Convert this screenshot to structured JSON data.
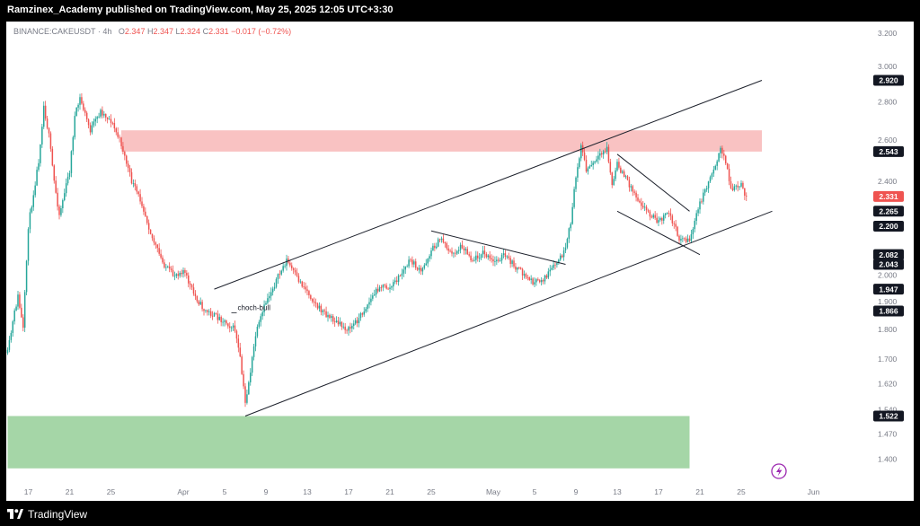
{
  "header": {
    "publisher": "Ramzinex_Academy published on TradingView.com, May 25, 2025 12:05 UTC+3:30"
  },
  "symbol_line": {
    "symbol": "BINANCE:CAKEUSDT",
    "interval": "4h",
    "o_label": "O",
    "o_value": "2.347",
    "h_label": "H",
    "h_value": "2.347",
    "l_label": "L",
    "l_value": "2.324",
    "c_label": "C",
    "c_value": "2.331",
    "change": "−0.017 (−0.72%)"
  },
  "footer": {
    "brand": "TradingView"
  },
  "colors": {
    "up": "#26a69a",
    "down": "#ef5350",
    "supply_zone": "#f9c2c2",
    "demand_zone": "#a5d6a7",
    "trendline": "#1e222d",
    "accent_icon": "#9c27b0"
  },
  "chart_data": {
    "type": "candlestick",
    "symbol": "BINANCE:CAKEUSDT",
    "interval": "4h",
    "y_scale": "log",
    "ylim": [
      1.36,
      3.3
    ],
    "xlim": [
      "2025-03-15",
      "2025-06-03"
    ],
    "y_ticks": [
      "3.200",
      "3.000",
      "2.800",
      "2.600",
      "2.400",
      "2.200",
      "2.000",
      "1.900",
      "1.800",
      "1.700",
      "1.620",
      "1.540",
      "1.470",
      "1.400"
    ],
    "x_ticks": [
      {
        "date": "2025-03-17",
        "label": "17"
      },
      {
        "date": "2025-03-21",
        "label": "21"
      },
      {
        "date": "2025-03-25",
        "label": "25"
      },
      {
        "date": "2025-04-01",
        "label": "Apr"
      },
      {
        "date": "2025-04-05",
        "label": "5"
      },
      {
        "date": "2025-04-09",
        "label": "9"
      },
      {
        "date": "2025-04-13",
        "label": "13"
      },
      {
        "date": "2025-04-17",
        "label": "17"
      },
      {
        "date": "2025-04-21",
        "label": "21"
      },
      {
        "date": "2025-04-25",
        "label": "25"
      },
      {
        "date": "2025-05-01",
        "label": "May"
      },
      {
        "date": "2025-05-05",
        "label": "5"
      },
      {
        "date": "2025-05-09",
        "label": "9"
      },
      {
        "date": "2025-05-13",
        "label": "13"
      },
      {
        "date": "2025-05-17",
        "label": "17"
      },
      {
        "date": "2025-05-21",
        "label": "21"
      },
      {
        "date": "2025-05-25",
        "label": "25"
      },
      {
        "date": "2025-06-01",
        "label": "Jun"
      }
    ],
    "price_labels": [
      {
        "value": "2.920",
        "kind": "line",
        "bg": "#131722",
        "fg": "#ffffff"
      },
      {
        "value": "2.543",
        "kind": "line",
        "bg": "#131722",
        "fg": "#ffffff"
      },
      {
        "value": "2.331",
        "kind": "last",
        "bg": "#ef5350",
        "fg": "#ffffff"
      },
      {
        "value": "2.265",
        "kind": "line",
        "bg": "#131722",
        "fg": "#ffffff"
      },
      {
        "value": "2.200",
        "kind": "line",
        "bg": "#131722",
        "fg": "#ffffff"
      },
      {
        "value": "2.082",
        "kind": "line",
        "bg": "#131722",
        "fg": "#ffffff"
      },
      {
        "value": "2.043",
        "kind": "line",
        "bg": "#131722",
        "fg": "#ffffff"
      },
      {
        "value": "1.947",
        "kind": "line",
        "bg": "#131722",
        "fg": "#ffffff"
      },
      {
        "value": "1.866",
        "kind": "line",
        "bg": "#131722",
        "fg": "#ffffff"
      },
      {
        "value": "1.522",
        "kind": "line",
        "bg": "#131722",
        "fg": "#ffffff"
      }
    ],
    "zones": [
      {
        "name": "supply",
        "from": "2025-03-26",
        "to": "2025-05-27",
        "low": 2.543,
        "high": 2.65
      },
      {
        "name": "demand",
        "from": "2025-03-15",
        "to": "2025-05-20",
        "low": 1.375,
        "high": 1.522
      }
    ],
    "trendlines": [
      {
        "name": "channel-upper",
        "from": {
          "date": "2025-04-04",
          "price": 1.947
        },
        "to": {
          "date": "2025-05-27",
          "price": 2.92
        }
      },
      {
        "name": "channel-lower",
        "from": {
          "date": "2025-04-07",
          "price": 1.522
        },
        "to": {
          "date": "2025-05-28",
          "price": 2.265
        }
      },
      {
        "name": "wedge-1",
        "from": {
          "date": "2025-04-25",
          "price": 2.18
        },
        "to": {
          "date": "2025-05-08",
          "price": 2.043
        }
      },
      {
        "name": "wedge-2-upper",
        "from": {
          "date": "2025-05-13",
          "price": 2.53
        },
        "to": {
          "date": "2025-05-20",
          "price": 2.265
        }
      },
      {
        "name": "wedge-2-lower",
        "from": {
          "date": "2025-05-13",
          "price": 2.265
        },
        "to": {
          "date": "2025-05-21",
          "price": 2.082
        }
      }
    ],
    "annotations": [
      {
        "text": "choch-bull",
        "date": "2025-04-06",
        "price": 1.866
      }
    ],
    "price_path": [
      {
        "date": "2025-03-15",
        "price": 1.72
      },
      {
        "date": "2025-03-15T16:00",
        "price": 1.86
      },
      {
        "date": "2025-03-16",
        "price": 1.92
      },
      {
        "date": "2025-03-16T12:00",
        "price": 1.8
      },
      {
        "date": "2025-03-17",
        "price": 2.2
      },
      {
        "date": "2025-03-18",
        "price": 2.5
      },
      {
        "date": "2025-03-18T12:00",
        "price": 2.78
      },
      {
        "date": "2025-03-19",
        "price": 2.62
      },
      {
        "date": "2025-03-19T12:00",
        "price": 2.4
      },
      {
        "date": "2025-03-20",
        "price": 2.25
      },
      {
        "date": "2025-03-21",
        "price": 2.45
      },
      {
        "date": "2025-03-21T12:00",
        "price": 2.72
      },
      {
        "date": "2025-03-22",
        "price": 2.82
      },
      {
        "date": "2025-03-23",
        "price": 2.65
      },
      {
        "date": "2025-03-24",
        "price": 2.75
      },
      {
        "date": "2025-03-25",
        "price": 2.7
      },
      {
        "date": "2025-03-26",
        "price": 2.58
      },
      {
        "date": "2025-03-27",
        "price": 2.4
      },
      {
        "date": "2025-03-28",
        "price": 2.3
      },
      {
        "date": "2025-03-29",
        "price": 2.15
      },
      {
        "date": "2025-03-30",
        "price": 2.05
      },
      {
        "date": "2025-03-31",
        "price": 2.0
      },
      {
        "date": "2025-04-01",
        "price": 2.02
      },
      {
        "date": "2025-04-02",
        "price": 1.93
      },
      {
        "date": "2025-04-03",
        "price": 1.87
      },
      {
        "date": "2025-04-04",
        "price": 1.85
      },
      {
        "date": "2025-04-05",
        "price": 1.83
      },
      {
        "date": "2025-04-06",
        "price": 1.8
      },
      {
        "date": "2025-04-06T12:00",
        "price": 1.7
      },
      {
        "date": "2025-04-07",
        "price": 1.56
      },
      {
        "date": "2025-04-07T12:00",
        "price": 1.66
      },
      {
        "date": "2025-04-08",
        "price": 1.78
      },
      {
        "date": "2025-04-09",
        "price": 1.9
      },
      {
        "date": "2025-04-10",
        "price": 1.98
      },
      {
        "date": "2025-04-11",
        "price": 2.06
      },
      {
        "date": "2025-04-12",
        "price": 1.99
      },
      {
        "date": "2025-04-13",
        "price": 1.94
      },
      {
        "date": "2025-04-14",
        "price": 1.88
      },
      {
        "date": "2025-04-15",
        "price": 1.85
      },
      {
        "date": "2025-04-16",
        "price": 1.82
      },
      {
        "date": "2025-04-17",
        "price": 1.8
      },
      {
        "date": "2025-04-18",
        "price": 1.84
      },
      {
        "date": "2025-04-19",
        "price": 1.9
      },
      {
        "date": "2025-04-20",
        "price": 1.96
      },
      {
        "date": "2025-04-21",
        "price": 1.95
      },
      {
        "date": "2025-04-22",
        "price": 2.0
      },
      {
        "date": "2025-04-23",
        "price": 2.06
      },
      {
        "date": "2025-04-24",
        "price": 2.01
      },
      {
        "date": "2025-04-25",
        "price": 2.1
      },
      {
        "date": "2025-04-26",
        "price": 2.15
      },
      {
        "date": "2025-04-27",
        "price": 2.08
      },
      {
        "date": "2025-04-28",
        "price": 2.12
      },
      {
        "date": "2025-04-29",
        "price": 2.06
      },
      {
        "date": "2025-04-30",
        "price": 2.09
      },
      {
        "date": "2025-05-01",
        "price": 2.05
      },
      {
        "date": "2025-05-02",
        "price": 2.08
      },
      {
        "date": "2025-05-03",
        "price": 2.04
      },
      {
        "date": "2025-05-04",
        "price": 2.0
      },
      {
        "date": "2025-05-05",
        "price": 1.97
      },
      {
        "date": "2025-05-06",
        "price": 1.99
      },
      {
        "date": "2025-05-07",
        "price": 2.04
      },
      {
        "date": "2025-05-08",
        "price": 2.1
      },
      {
        "date": "2025-05-08T12:00",
        "price": 2.22
      },
      {
        "date": "2025-05-09",
        "price": 2.42
      },
      {
        "date": "2025-05-09T12:00",
        "price": 2.58
      },
      {
        "date": "2025-05-10",
        "price": 2.45
      },
      {
        "date": "2025-05-11",
        "price": 2.5
      },
      {
        "date": "2025-05-12",
        "price": 2.56
      },
      {
        "date": "2025-05-12T12:00",
        "price": 2.38
      },
      {
        "date": "2025-05-13",
        "price": 2.48
      },
      {
        "date": "2025-05-14",
        "price": 2.4
      },
      {
        "date": "2025-05-15",
        "price": 2.32
      },
      {
        "date": "2025-05-16",
        "price": 2.26
      },
      {
        "date": "2025-05-17",
        "price": 2.22
      },
      {
        "date": "2025-05-18",
        "price": 2.26
      },
      {
        "date": "2025-05-19",
        "price": 2.15
      },
      {
        "date": "2025-05-20",
        "price": 2.14
      },
      {
        "date": "2025-05-20T12:00",
        "price": 2.22
      },
      {
        "date": "2025-05-21",
        "price": 2.3
      },
      {
        "date": "2025-05-22",
        "price": 2.42
      },
      {
        "date": "2025-05-23",
        "price": 2.55
      },
      {
        "date": "2025-05-23T12:00",
        "price": 2.5
      },
      {
        "date": "2025-05-24",
        "price": 2.36
      },
      {
        "date": "2025-05-25",
        "price": 2.38
      },
      {
        "date": "2025-05-25T12:00",
        "price": 2.331
      }
    ]
  }
}
